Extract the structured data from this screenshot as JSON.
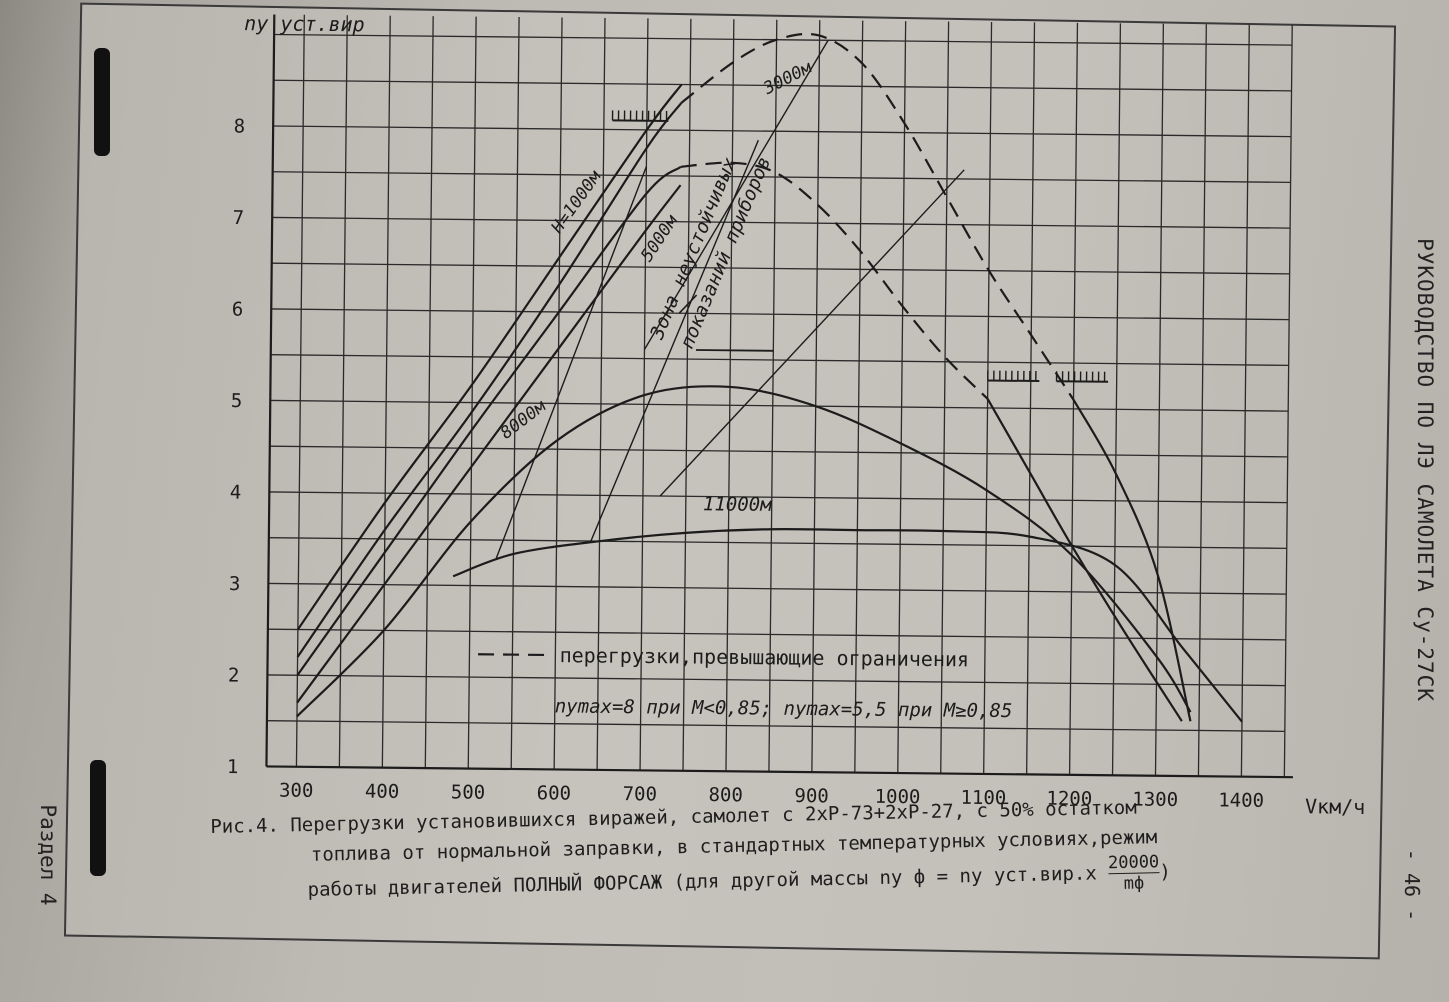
{
  "document": {
    "side_title": "РУКОВОДСТВО ПО ЛЭ САМОЛЕТА Су-27СК",
    "page_number": "- 46 -",
    "section": "Раздел 4"
  },
  "caption": {
    "line1": "Рис.4. Перегрузки установившихся виражей, самолет с 2хР-73+2хР-27, с 50% остатком",
    "line2": "топлива от нормальной заправки, в стандартных температурных условиях,режим",
    "line3": "работы двигателей ПОЛНЫЙ ФОРСАЖ (для другой массы  ny ф = ny уст.вир.x",
    "fraction_numerator": "20000",
    "fraction_denominator": "mф",
    "line3_end": ")"
  },
  "colors": {
    "ink": "#1c1c1c",
    "grid": "#2a2a2a"
  },
  "chart_data": {
    "type": "line",
    "title": "",
    "xlabel": "Vкм/ч",
    "ylabel": "ny уст.вир",
    "xlim": [
      300,
      1400
    ],
    "ylim": [
      1,
      9
    ],
    "x_ticks": [
      300,
      400,
      500,
      600,
      700,
      800,
      900,
      1000,
      1100,
      1200,
      1300,
      1400
    ],
    "y_ticks": [
      1,
      2,
      3,
      4,
      5,
      6,
      7,
      8
    ],
    "grid": true,
    "series": [
      {
        "name": "H=1000м",
        "style": "solid",
        "points": [
          [
            300,
            2.5
          ],
          [
            400,
            3.9
          ],
          [
            500,
            5.2
          ],
          [
            600,
            6.6
          ],
          [
            700,
            8.0
          ],
          [
            740,
            8.5
          ]
        ]
      },
      {
        "name": "3000м",
        "style": "solid",
        "points": [
          [
            300,
            2.2
          ],
          [
            400,
            3.6
          ],
          [
            500,
            4.9
          ],
          [
            600,
            6.3
          ],
          [
            700,
            7.8
          ],
          [
            740,
            8.3
          ]
        ]
      },
      {
        "name": "3000м",
        "style": "dashed",
        "points": [
          [
            740,
            8.3
          ],
          [
            800,
            8.75
          ],
          [
            850,
            9.0
          ],
          [
            900,
            9.05
          ],
          [
            950,
            8.75
          ],
          [
            1000,
            8.1
          ],
          [
            1050,
            7.3
          ],
          [
            1100,
            6.5
          ],
          [
            1150,
            5.8
          ],
          [
            1200,
            5.1
          ]
        ]
      },
      {
        "name": "3000м",
        "style": "solid",
        "points": [
          [
            1200,
            5.1
          ],
          [
            1250,
            4.3
          ],
          [
            1300,
            3.2
          ],
          [
            1340,
            1.6
          ]
        ]
      },
      {
        "name": "5000м",
        "style": "solid",
        "points": [
          [
            300,
            2.0
          ],
          [
            400,
            3.35
          ],
          [
            500,
            4.7
          ],
          [
            600,
            6.0
          ],
          [
            700,
            7.3
          ],
          [
            740,
            7.6
          ]
        ]
      },
      {
        "name": "5000м",
        "style": "dashed",
        "points": [
          [
            740,
            7.6
          ],
          [
            800,
            7.65
          ],
          [
            850,
            7.55
          ],
          [
            900,
            7.2
          ],
          [
            950,
            6.7
          ],
          [
            1000,
            6.1
          ],
          [
            1050,
            5.55
          ],
          [
            1100,
            5.1
          ]
        ]
      },
      {
        "name": "5000м",
        "style": "solid",
        "points": [
          [
            1100,
            5.1
          ],
          [
            1150,
            4.3
          ],
          [
            1200,
            3.5
          ],
          [
            1260,
            2.6
          ],
          [
            1330,
            1.6
          ]
        ]
      },
      {
        "name": "",
        "style": "solid",
        "points": [
          [
            300,
            1.7
          ],
          [
            400,
            3.0
          ],
          [
            500,
            4.3
          ],
          [
            600,
            5.6
          ],
          [
            700,
            6.9
          ],
          [
            740,
            7.4
          ]
        ]
      },
      {
        "name": "8000м",
        "style": "solid",
        "points": [
          [
            300,
            1.55
          ],
          [
            400,
            2.5
          ],
          [
            500,
            3.7
          ],
          [
            600,
            4.6
          ],
          [
            700,
            5.1
          ],
          [
            800,
            5.2
          ],
          [
            900,
            5.0
          ],
          [
            1000,
            4.6
          ],
          [
            1100,
            4.1
          ],
          [
            1200,
            3.4
          ],
          [
            1300,
            2.3
          ],
          [
            1340,
            1.7
          ]
        ]
      },
      {
        "name": "11000м",
        "style": "solid",
        "points": [
          [
            480,
            3.1
          ],
          [
            550,
            3.35
          ],
          [
            650,
            3.5
          ],
          [
            750,
            3.6
          ],
          [
            850,
            3.65
          ],
          [
            950,
            3.65
          ],
          [
            1050,
            3.65
          ],
          [
            1150,
            3.6
          ],
          [
            1250,
            3.3
          ],
          [
            1330,
            2.4
          ],
          [
            1400,
            1.6
          ]
        ]
      }
    ],
    "guide_lines": [
      [
        [
          530,
          3.3
        ],
        [
          700,
          7.6
        ]
      ],
      [
        [
          640,
          3.5
        ],
        [
          830,
          7.9
        ]
      ],
      [
        [
          700,
          5.6
        ],
        [
          910,
          9.0
        ]
      ],
      [
        [
          720,
          4.0
        ],
        [
          1070,
          7.6
        ]
      ]
    ],
    "legend": {
      "dashed": "перегрузки,превышающие ограничения",
      "position": "bottom-center"
    },
    "annotations": {
      "limits": "nymax=8 при M<0,85; nymax=5,5 при M≥0,85",
      "zone": [
        "Зона неустойчивых",
        "показаний приборов"
      ]
    }
  }
}
